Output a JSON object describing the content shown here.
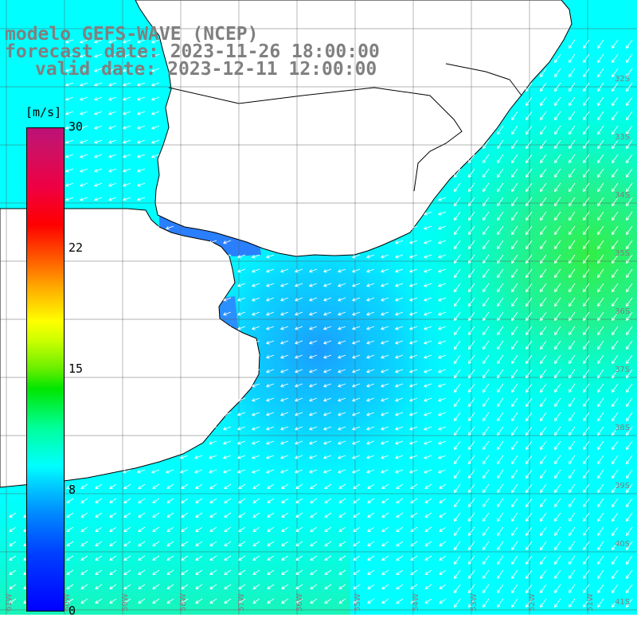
{
  "title": {
    "model": "modelo GEFS-WAVE (NCEP)",
    "forecast": "forecast date: 2023-11-26 18:00:00",
    "valid": "valid date: 2023-12-11 12:00:00"
  },
  "colorbar": {
    "unit": "[m/s]",
    "ticks": [
      "30",
      "22",
      "15",
      "8",
      "0"
    ],
    "colors": [
      "#0000ff",
      "#00ffff",
      "#00e600",
      "#ffff00",
      "#ff0000",
      "#bb1177"
    ]
  },
  "map": {
    "lat_labels": [
      "32S",
      "33S",
      "34S",
      "35S",
      "36S",
      "37S",
      "38S",
      "39S",
      "40S",
      "41S"
    ],
    "lon_labels": [
      "61W",
      "60W",
      "59W",
      "58W",
      "57W",
      "56W",
      "55W",
      "54W",
      "53W",
      "52W",
      "51W"
    ],
    "wind_direction": "from NE (arrows pointing SW/W)",
    "ocean_colors": {
      "slow": "#1e90ff",
      "mid": "#00ffff",
      "fast": "#33ee44"
    },
    "land_color": "#ffffff",
    "coast_color": "#000000"
  }
}
